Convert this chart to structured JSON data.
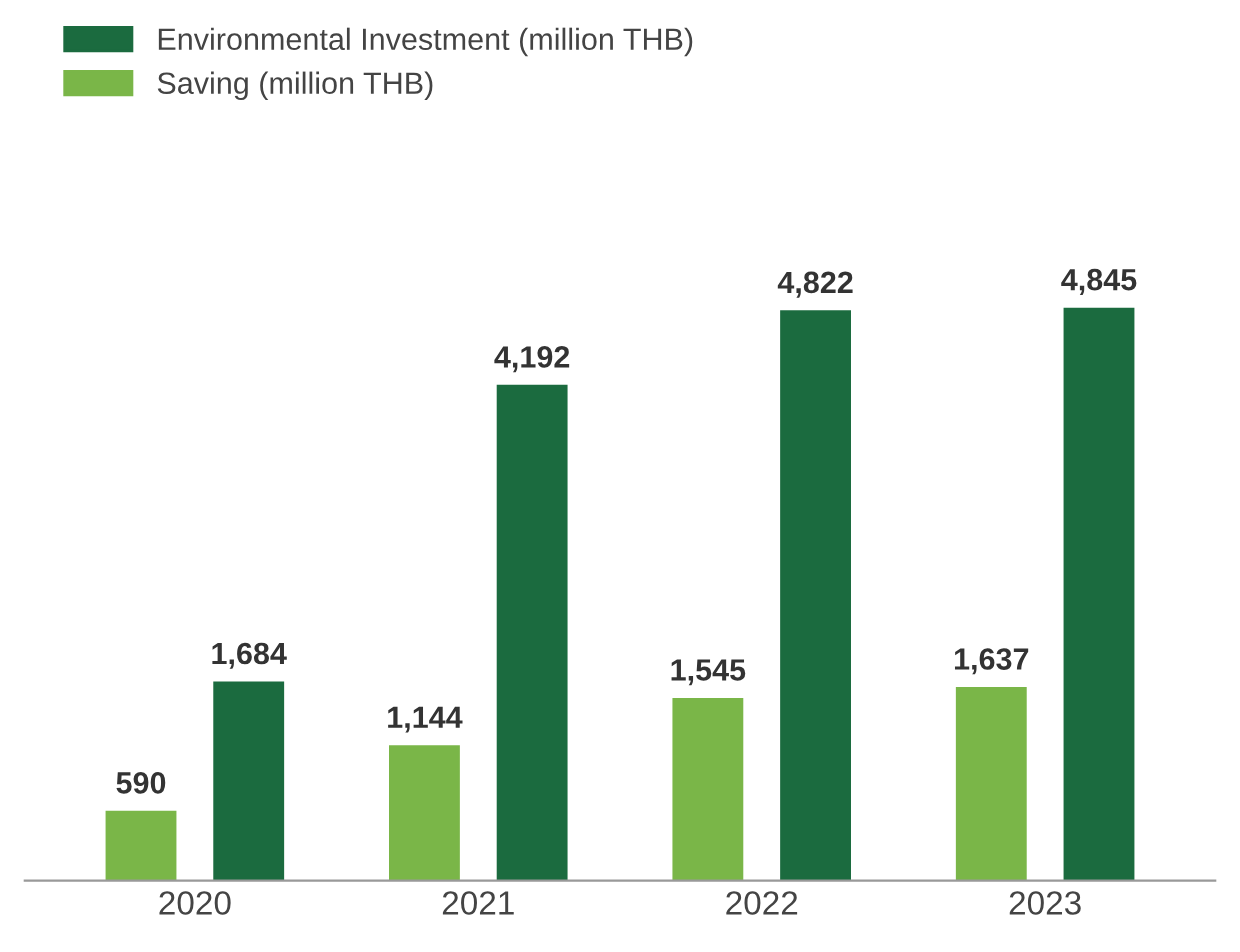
{
  "chart_data": {
    "type": "bar",
    "categories": [
      "2020",
      "2021",
      "2022",
      "2023"
    ],
    "series": [
      {
        "name": "Saving (million THB)",
        "color": "#7ab648",
        "values": [
          590,
          1144,
          1545,
          1637
        ],
        "value_labels": [
          "590",
          "1,144",
          "1,545",
          "1,637"
        ]
      },
      {
        "name": "Environmental Investment (million THB)",
        "color": "#1b6b3f",
        "values": [
          1684,
          4192,
          4822,
          4845
        ],
        "value_labels": [
          "1,684",
          "4,192",
          "4,822",
          "4,845"
        ]
      }
    ],
    "legend": "top left",
    "tick_labels": "x",
    "grid": false
  }
}
